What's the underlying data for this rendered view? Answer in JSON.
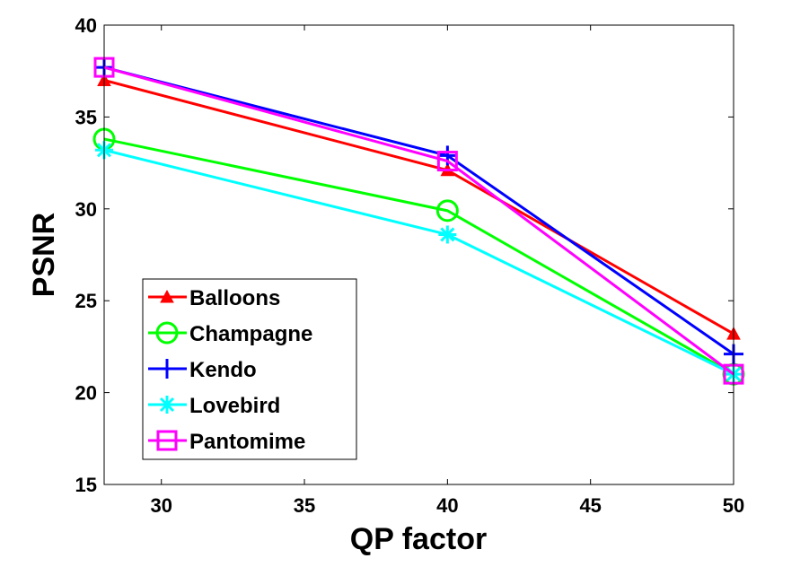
{
  "chart_data": {
    "type": "line",
    "title": "",
    "xlabel": "QP factor",
    "ylabel": "PSNR",
    "xlim": [
      28,
      50
    ],
    "ylim": [
      15,
      40
    ],
    "xticks": [
      30,
      35,
      40,
      45,
      50
    ],
    "yticks": [
      15,
      20,
      25,
      30,
      35,
      40
    ],
    "x": [
      28,
      40,
      50
    ],
    "grid": false,
    "legend_position": "bottom-left",
    "series": [
      {
        "name": "Balloons",
        "values": [
          37.0,
          32.1,
          23.2
        ],
        "color": "#ff0000",
        "marker": "triangle"
      },
      {
        "name": "Champagne",
        "values": [
          33.8,
          29.9,
          21.0
        ],
        "color": "#00ff00",
        "marker": "circle"
      },
      {
        "name": "Kendo",
        "values": [
          37.7,
          32.9,
          22.1
        ],
        "color": "#0000ff",
        "marker": "plus"
      },
      {
        "name": "Lovebird",
        "values": [
          33.2,
          28.6,
          21.0
        ],
        "color": "#00ffff",
        "marker": "star"
      },
      {
        "name": "Pantomime",
        "values": [
          37.7,
          32.6,
          21.0
        ],
        "color": "#ff00ff",
        "marker": "square"
      }
    ]
  }
}
